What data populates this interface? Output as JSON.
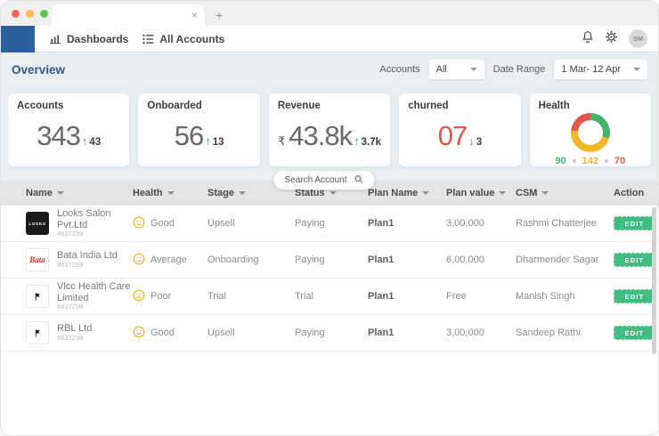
{
  "browser": {
    "tab_close": "×",
    "new_tab": "+"
  },
  "nav": {
    "items": [
      {
        "label": "Dashboards"
      },
      {
        "label": "All Accounts"
      }
    ],
    "avatar_initials": "SM"
  },
  "overview": {
    "title": "Overview",
    "accounts_filter": {
      "label": "Accounts",
      "value": "All"
    },
    "date_range": {
      "label": "Date Range",
      "value": "1 Mar- 12 Apr"
    }
  },
  "kpis": {
    "accounts": {
      "label": "Accounts",
      "value": "343",
      "arrow": "↑",
      "delta": "43"
    },
    "onboarded": {
      "label": "Onboarded",
      "value": "56",
      "arrow": "↑",
      "delta": "13"
    },
    "revenue": {
      "label": "Revenue",
      "currency": "₹",
      "value": "43.8k",
      "arrow": "↑",
      "delta": "3.7k"
    },
    "churned": {
      "label": "churned",
      "value": "07",
      "arrow": "↓",
      "delta": "3"
    },
    "health": {
      "label": "Health",
      "legend": [
        {
          "value": "90"
        },
        {
          "value": "142"
        },
        {
          "value": "70"
        }
      ]
    }
  },
  "chart_data": {
    "type": "pie",
    "title": "Health",
    "categories": [
      "Good",
      "Average",
      "Poor"
    ],
    "values": [
      90,
      142,
      70
    ],
    "colors": [
      "#45b36b",
      "#efb927",
      "#e2574c"
    ],
    "legend_position": "bottom"
  },
  "search": {
    "label": "Search Account"
  },
  "table": {
    "columns": [
      {
        "label": "Name",
        "sortable": true
      },
      {
        "label": "Health",
        "sortable": true
      },
      {
        "label": "Stage",
        "sortable": true
      },
      {
        "label": "Status",
        "sortable": true
      },
      {
        "label": "Plan Name",
        "sortable": true
      },
      {
        "label": "Plan value",
        "sortable": true
      },
      {
        "label": "CSM",
        "sortable": true
      },
      {
        "label": "Action",
        "sortable": false
      }
    ],
    "rows": [
      {
        "name": "Looks Salon Pvt.Ltd",
        "id": "#837299",
        "logo_text": "LOOKS",
        "health": "Good",
        "health_mood": "good",
        "stage": "Upsell",
        "status": "Paying",
        "plan_name": "Plan1",
        "plan_value": "3,00,000",
        "csm": "Rashmi Chatterjee",
        "action": "EDIT"
      },
      {
        "name": "Bata India Ltd",
        "id": "#837299",
        "logo_text": "Bata",
        "health": "Average",
        "health_mood": "average",
        "stage": "Onboarding",
        "status": "Paying",
        "plan_name": "Plan1",
        "plan_value": "6,00,000",
        "csm": "Dharmender Sagar",
        "action": "EDIT"
      },
      {
        "name": "Vlcc Health Care Limited",
        "id": "#837299",
        "logo_text": "",
        "health": "Poor",
        "health_mood": "poor",
        "stage": "Trial",
        "status": "Trial",
        "plan_name": "Plan1",
        "plan_value": "Free",
        "csm": "Manish Singh",
        "action": "EDIT"
      },
      {
        "name": "RBL Ltd",
        "id": "#837299",
        "logo_text": "",
        "health": "Good",
        "health_mood": "good",
        "stage": "Upsell",
        "status": "Paying",
        "plan_name": "Plan1",
        "plan_value": "3,00,000",
        "csm": "Sandeep Rathi",
        "action": "EDIT"
      }
    ]
  },
  "colors": {
    "accent_green": "#41bd83",
    "alert_red": "#e2574c",
    "nav_blue": "#2b5f9e",
    "face_yellow": "#f0b429"
  }
}
